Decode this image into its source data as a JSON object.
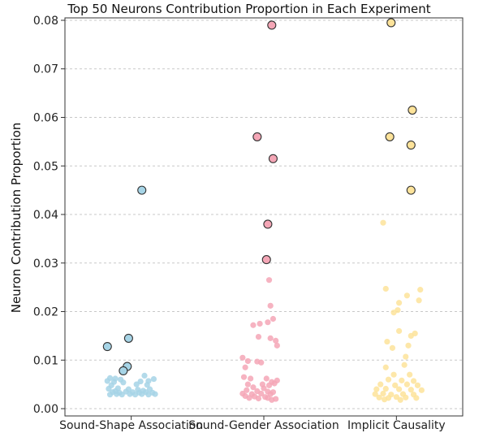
{
  "chart_data": {
    "type": "scatter",
    "title": "Top 50 Neurons Contribution Proportion in Each Experiment",
    "xlabel": "",
    "ylabel": "Neuron Contribution Proportion",
    "categories": [
      "Sound-Shape Association",
      "Sound-Gender Association",
      "Implicit Causality"
    ],
    "ylim": [
      -0.0015,
      0.0805
    ],
    "yticks": [
      "0.00",
      "0.01",
      "0.02",
      "0.03",
      "0.04",
      "0.05",
      "0.06",
      "0.07",
      "0.08"
    ],
    "grid": "horizontal-dashed",
    "series": [
      {
        "color": "#a6d4e6",
        "highlighted": [
          {
            "x": 0.08,
            "y": 0.045
          },
          {
            "x": -0.02,
            "y": 0.0145
          },
          {
            "x": -0.18,
            "y": 0.0128
          },
          {
            "x": -0.03,
            "y": 0.0087
          },
          {
            "x": -0.06,
            "y": 0.0078
          }
        ],
        "background": [
          {
            "x": -0.16,
            "y": 0.0063
          },
          {
            "x": -0.12,
            "y": 0.0062
          },
          {
            "x": -0.08,
            "y": 0.006
          },
          {
            "x": 0.1,
            "y": 0.0068
          },
          {
            "x": 0.17,
            "y": 0.0061
          },
          {
            "x": -0.18,
            "y": 0.0057
          },
          {
            "x": -0.13,
            "y": 0.0055
          },
          {
            "x": -0.06,
            "y": 0.0054
          },
          {
            "x": 0.07,
            "y": 0.0056
          },
          {
            "x": 0.13,
            "y": 0.0057
          },
          {
            "x": -0.15,
            "y": 0.0048
          },
          {
            "x": 0.04,
            "y": 0.005
          },
          {
            "x": 0.12,
            "y": 0.0049
          },
          {
            "x": -0.17,
            "y": 0.0041
          },
          {
            "x": -0.1,
            "y": 0.0042
          },
          {
            "x": -0.02,
            "y": 0.004
          },
          {
            "x": 0.05,
            "y": 0.0039
          },
          {
            "x": 0.14,
            "y": 0.004
          },
          {
            "x": -0.14,
            "y": 0.0034
          },
          {
            "x": -0.09,
            "y": 0.0033
          },
          {
            "x": -0.04,
            "y": 0.0035
          },
          {
            "x": 0.01,
            "y": 0.0034
          },
          {
            "x": 0.06,
            "y": 0.0033
          },
          {
            "x": 0.11,
            "y": 0.0034
          },
          {
            "x": 0.16,
            "y": 0.0033
          },
          {
            "x": -0.16,
            "y": 0.0029
          },
          {
            "x": -0.11,
            "y": 0.003
          },
          {
            "x": -0.07,
            "y": 0.0029
          },
          {
            "x": -0.01,
            "y": 0.003
          },
          {
            "x": 0.03,
            "y": 0.0029
          },
          {
            "x": 0.08,
            "y": 0.003
          },
          {
            "x": 0.13,
            "y": 0.0029
          },
          {
            "x": 0.18,
            "y": 0.003
          },
          {
            "x": -0.12,
            "y": 0.0036
          },
          {
            "x": 0.09,
            "y": 0.0037
          }
        ]
      },
      {
        "color": "#f4a6b6",
        "highlighted": [
          {
            "x": 0.06,
            "y": 0.079
          },
          {
            "x": -0.05,
            "y": 0.056
          },
          {
            "x": 0.07,
            "y": 0.0515
          },
          {
            "x": 0.03,
            "y": 0.038
          },
          {
            "x": 0.02,
            "y": 0.0307
          }
        ],
        "background": [
          {
            "x": 0.04,
            "y": 0.0265
          },
          {
            "x": 0.05,
            "y": 0.0212
          },
          {
            "x": 0.07,
            "y": 0.0185
          },
          {
            "x": -0.03,
            "y": 0.0175
          },
          {
            "x": -0.08,
            "y": 0.0172
          },
          {
            "x": 0.03,
            "y": 0.0178
          },
          {
            "x": -0.04,
            "y": 0.0148
          },
          {
            "x": 0.05,
            "y": 0.0145
          },
          {
            "x": 0.09,
            "y": 0.014
          },
          {
            "x": 0.1,
            "y": 0.013
          },
          {
            "x": -0.16,
            "y": 0.0105
          },
          {
            "x": -0.12,
            "y": 0.0098
          },
          {
            "x": -0.05,
            "y": 0.0097
          },
          {
            "x": -0.02,
            "y": 0.0095
          },
          {
            "x": -0.14,
            "y": 0.0085
          },
          {
            "x": -0.15,
            "y": 0.0065
          },
          {
            "x": -0.1,
            "y": 0.0062
          },
          {
            "x": 0.02,
            "y": 0.0062
          },
          {
            "x": 0.06,
            "y": 0.0055
          },
          {
            "x": 0.1,
            "y": 0.0058
          },
          {
            "x": -0.12,
            "y": 0.005
          },
          {
            "x": -0.01,
            "y": 0.005
          },
          {
            "x": 0.04,
            "y": 0.0048
          },
          {
            "x": 0.08,
            "y": 0.0052
          },
          {
            "x": -0.08,
            "y": 0.0044
          },
          {
            "x": 0.0,
            "y": 0.0042
          },
          {
            "x": -0.13,
            "y": 0.0038
          },
          {
            "x": -0.05,
            "y": 0.0036
          },
          {
            "x": 0.03,
            "y": 0.0035
          },
          {
            "x": 0.07,
            "y": 0.0034
          },
          {
            "x": -0.16,
            "y": 0.0031
          },
          {
            "x": -0.09,
            "y": 0.003
          },
          {
            "x": -0.02,
            "y": 0.0031
          },
          {
            "x": 0.05,
            "y": 0.003
          },
          {
            "x": -0.14,
            "y": 0.0026
          },
          {
            "x": -0.07,
            "y": 0.0025
          },
          {
            "x": 0.01,
            "y": 0.0024
          },
          {
            "x": -0.11,
            "y": 0.0022
          },
          {
            "x": -0.04,
            "y": 0.0021
          },
          {
            "x": 0.03,
            "y": 0.0022
          },
          {
            "x": 0.09,
            "y": 0.002
          },
          {
            "x": 0.06,
            "y": 0.0018
          }
        ]
      },
      {
        "color": "#fde39a",
        "highlighted": [
          {
            "x": -0.04,
            "y": 0.0795
          },
          {
            "x": 0.12,
            "y": 0.0615
          },
          {
            "x": -0.05,
            "y": 0.056
          },
          {
            "x": 0.11,
            "y": 0.0543
          },
          {
            "x": 0.11,
            "y": 0.045
          }
        ],
        "background": [
          {
            "x": -0.1,
            "y": 0.0383
          },
          {
            "x": -0.08,
            "y": 0.0247
          },
          {
            "x": 0.18,
            "y": 0.0245
          },
          {
            "x": 0.08,
            "y": 0.0233
          },
          {
            "x": 0.17,
            "y": 0.0223
          },
          {
            "x": 0.02,
            "y": 0.0218
          },
          {
            "x": 0.01,
            "y": 0.0203
          },
          {
            "x": -0.02,
            "y": 0.0198
          },
          {
            "x": 0.14,
            "y": 0.0155
          },
          {
            "x": 0.02,
            "y": 0.016
          },
          {
            "x": 0.11,
            "y": 0.015
          },
          {
            "x": -0.07,
            "y": 0.0138
          },
          {
            "x": 0.09,
            "y": 0.013
          },
          {
            "x": -0.03,
            "y": 0.0125
          },
          {
            "x": 0.07,
            "y": 0.0107
          },
          {
            "x": 0.06,
            "y": 0.009
          },
          {
            "x": -0.08,
            "y": 0.0085
          },
          {
            "x": -0.02,
            "y": 0.007
          },
          {
            "x": 0.1,
            "y": 0.007
          },
          {
            "x": -0.06,
            "y": 0.006
          },
          {
            "x": 0.04,
            "y": 0.0058
          },
          {
            "x": 0.13,
            "y": 0.0057
          },
          {
            "x": -0.12,
            "y": 0.005
          },
          {
            "x": -0.01,
            "y": 0.0048
          },
          {
            "x": 0.08,
            "y": 0.005
          },
          {
            "x": 0.16,
            "y": 0.0048
          },
          {
            "x": -0.15,
            "y": 0.004
          },
          {
            "x": -0.08,
            "y": 0.0041
          },
          {
            "x": 0.02,
            "y": 0.004
          },
          {
            "x": 0.11,
            "y": 0.0039
          },
          {
            "x": 0.19,
            "y": 0.0038
          },
          {
            "x": -0.16,
            "y": 0.003
          },
          {
            "x": -0.1,
            "y": 0.0031
          },
          {
            "x": -0.04,
            "y": 0.0029
          },
          {
            "x": 0.05,
            "y": 0.003
          },
          {
            "x": 0.13,
            "y": 0.0029
          },
          {
            "x": -0.13,
            "y": 0.0023
          },
          {
            "x": -0.06,
            "y": 0.0022
          },
          {
            "x": 0.0,
            "y": 0.0024
          },
          {
            "x": 0.07,
            "y": 0.0023
          },
          {
            "x": 0.15,
            "y": 0.0022
          },
          {
            "x": -0.09,
            "y": 0.0019
          },
          {
            "x": 0.03,
            "y": 0.0018
          }
        ]
      }
    ]
  }
}
